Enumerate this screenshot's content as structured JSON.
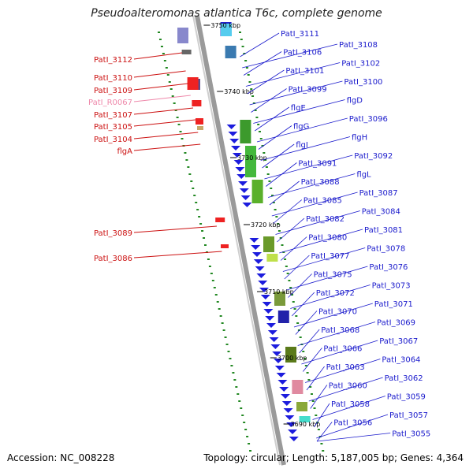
{
  "title": "Pseudoalteromonas atlantica T6c, complete genome",
  "footer": {
    "accession": "Accession: NC_008228",
    "summary": "Topology: circular; Length: 5,187,005 bp; Genes: 4,364"
  },
  "colors": {
    "backbone": "#9a9a9a",
    "forward_label": "#1a1acc",
    "reverse_label": "#cc1111",
    "rna_label": "#ee88aa",
    "tick": "#228822"
  },
  "kbp_labels": [
    "3750 kbp",
    "3740 kbp",
    "3730 kbp",
    "3720 kbp",
    "3710 kbp",
    "3700 kbp",
    "3690 kbp"
  ],
  "left_labels": [
    {
      "text": "PatI_3112",
      "kind": "reverse"
    },
    {
      "text": "PatI_3110",
      "kind": "reverse"
    },
    {
      "text": "PatI_3109",
      "kind": "reverse"
    },
    {
      "text": "PatI_R0067",
      "kind": "rna"
    },
    {
      "text": "PatI_3107",
      "kind": "reverse"
    },
    {
      "text": "PatI_3105",
      "kind": "reverse"
    },
    {
      "text": "PatI_3104",
      "kind": "reverse"
    },
    {
      "text": "flgA",
      "kind": "reverse"
    },
    {
      "text": "PatI_3089",
      "kind": "reverse"
    },
    {
      "text": "PatI_3086",
      "kind": "reverse"
    }
  ],
  "right_labels": [
    "PatI_3111",
    "PatI_3108",
    "PatI_3106",
    "PatI_3102",
    "PatI_3101",
    "PatI_3100",
    "PatI_3099",
    "flgD",
    "flgE",
    "PatI_3096",
    "flgG",
    "flgH",
    "flgI",
    "PatI_3092",
    "PatI_3091",
    "flgL",
    "PatI_3088",
    "PatI_3087",
    "PatI_3085",
    "PatI_3084",
    "PatI_3082",
    "PatI_3081",
    "PatI_3080",
    "PatI_3078",
    "PatI_3077",
    "PatI_3076",
    "PatI_3075",
    "PatI_3073",
    "PatI_3072",
    "PatI_3071",
    "PatI_3070",
    "PatI_3069",
    "PatI_3068",
    "PatI_3067",
    "PatI_3066",
    "PatI_3064",
    "PatI_3063",
    "PatI_3062",
    "PatI_3060",
    "PatI_3059",
    "PatI_3058",
    "PatI_3057",
    "PatI_3056",
    "PatI_3055"
  ]
}
